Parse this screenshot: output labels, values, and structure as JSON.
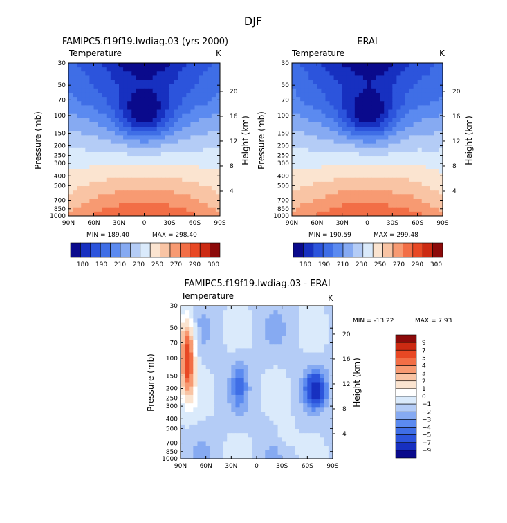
{
  "page_title": "DJF",
  "chart_data": [
    {
      "type": "heatmap",
      "id": "model",
      "title": "FAMIPC5.f19f19.lwdiag.03 (yrs 2000)",
      "subtitle": "Temperature",
      "units": "K",
      "ylabel": "Pressure (mb)",
      "ylabel_right": "Height (km)",
      "x_ticks": [
        "90N",
        "60N",
        "30N",
        "0",
        "30S",
        "60S",
        "90S"
      ],
      "xlim": [
        90,
        -90
      ],
      "y_ticks": [
        30,
        50,
        70,
        100,
        150,
        200,
        250,
        300,
        400,
        500,
        700,
        850,
        1000
      ],
      "ylim": [
        30,
        1000
      ],
      "height_ticks": [
        20,
        16,
        12,
        8,
        4
      ],
      "min_label": "MIN = 189.40",
      "max_label": "MAX = 298.40",
      "min": 189.4,
      "max": 298.4,
      "colorbar": {
        "levels": [
          180,
          190,
          200,
          210,
          220,
          230,
          240,
          250,
          260,
          270,
          280,
          290,
          300
        ],
        "tick_labels": [
          "180",
          "190",
          "210",
          "230",
          "250",
          "270",
          "290",
          "300"
        ]
      }
    },
    {
      "type": "heatmap",
      "id": "obs",
      "title": "ERAI",
      "subtitle": "Temperature",
      "units": "K",
      "ylabel": "Pressure (mb)",
      "ylabel_right": "Height (km)",
      "x_ticks": [
        "90N",
        "60N",
        "30N",
        "0",
        "30S",
        "60S",
        "90S"
      ],
      "xlim": [
        90,
        -90
      ],
      "y_ticks": [
        30,
        50,
        70,
        100,
        150,
        200,
        250,
        300,
        400,
        500,
        700,
        850,
        1000
      ],
      "ylim": [
        30,
        1000
      ],
      "height_ticks": [
        20,
        16,
        12,
        8,
        4
      ],
      "min_label": "MIN = 190.59",
      "max_label": "MAX = 299.48",
      "min": 190.59,
      "max": 299.48,
      "colorbar": {
        "levels": [
          180,
          190,
          200,
          210,
          220,
          230,
          240,
          250,
          260,
          270,
          280,
          290,
          300
        ],
        "tick_labels": [
          "180",
          "190",
          "210",
          "230",
          "250",
          "270",
          "290",
          "300"
        ]
      }
    },
    {
      "type": "heatmap",
      "id": "diff",
      "title": "FAMIPC5.f19f19.lwdiag.03 - ERAI",
      "subtitle": "Temperature",
      "units": "K",
      "ylabel": "Pressure (mb)",
      "ylabel_right": "Height (km)",
      "x_ticks": [
        "90N",
        "60N",
        "30N",
        "0",
        "30S",
        "60S",
        "90S"
      ],
      "xlim": [
        90,
        -90
      ],
      "y_ticks": [
        30,
        50,
        70,
        100,
        150,
        200,
        250,
        300,
        400,
        500,
        700,
        850,
        1000
      ],
      "ylim": [
        30,
        1000
      ],
      "height_ticks": [
        20,
        16,
        12,
        8,
        4
      ],
      "min_label": "MIN = -13.22",
      "max_label": "MAX =    7.93",
      "min": -13.22,
      "max": 7.93,
      "colorbar": {
        "levels": [
          9,
          7,
          5,
          4,
          3,
          2,
          1,
          0,
          -1,
          -2,
          -3,
          -4,
          -5,
          -7,
          -9
        ],
        "tick_labels": [
          "9",
          "7",
          "5",
          "4",
          "3",
          "2",
          "1",
          "0",
          "−1",
          "−2",
          "−3",
          "−4",
          "−5",
          "−7",
          "−9"
        ]
      }
    }
  ],
  "palettes": {
    "temperature": [
      "#0a0a8c",
      "#1730c0",
      "#2c54dc",
      "#3f6ee6",
      "#5b8af0",
      "#86aaf2",
      "#b4ccf6",
      "#daeafb",
      "#fbe4d0",
      "#f9c4a4",
      "#f79a72",
      "#f26e46",
      "#e84824",
      "#cc2a12",
      "#8c0a0a"
    ],
    "difference": [
      "#8c0a0a",
      "#cc2a12",
      "#e84824",
      "#f26e46",
      "#f79a72",
      "#f9c4a4",
      "#fbe4d0",
      "#ffffff",
      "#daeafb",
      "#b4ccf6",
      "#86aaf2",
      "#5b8af0",
      "#3f6ee6",
      "#2c54dc",
      "#1730c0",
      "#0a0a8c"
    ]
  }
}
